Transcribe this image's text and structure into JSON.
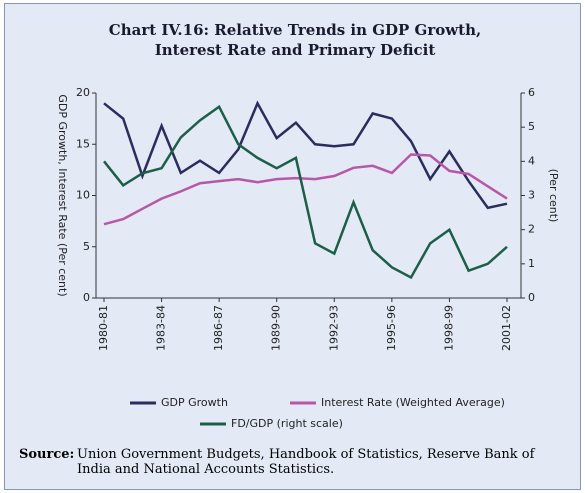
{
  "chart_data": {
    "type": "line",
    "title": "Chart IV.16: Relative Trends in GDP Growth, Interest Rate and Primary Deficit",
    "ylabel": "GDP Growth, Interest Rate (Per cent)",
    "y2label": "(Per cent)",
    "categories": [
      "1980-81",
      null,
      null,
      "1983-84",
      null,
      null,
      "1986-87",
      null,
      null,
      "1989-90",
      null,
      null,
      "1992-93",
      null,
      null,
      "1995-96",
      null,
      null,
      "1998-99",
      null,
      null,
      "2001-02"
    ],
    "ylim": [
      0,
      20
    ],
    "yticks": [
      0,
      5,
      10,
      15,
      20
    ],
    "y2lim": [
      0,
      6
    ],
    "y2ticks": [
      0,
      1,
      2,
      3,
      4,
      5,
      6
    ],
    "series": [
      {
        "name": "GDP Growth",
        "color": "#2b2d5e",
        "values": [
          19.0,
          17.5,
          11.9,
          16.8,
          12.2,
          13.4,
          12.2,
          14.5,
          19.0,
          15.6,
          17.1,
          15.0,
          14.8,
          15.0,
          18.0,
          17.5,
          15.3,
          11.6,
          14.3,
          11.4,
          8.8,
          9.2
        ]
      },
      {
        "name": "Interest Rate (Weighted Average)",
        "color": "#b857a8",
        "values": [
          7.2,
          7.7,
          8.7,
          9.7,
          10.4,
          11.2,
          11.4,
          11.6,
          11.3,
          11.6,
          11.7,
          11.6,
          11.9,
          12.7,
          12.9,
          12.2,
          14.0,
          13.9,
          12.4,
          12.1,
          10.9,
          9.7
        ]
      },
      {
        "name": "FD/GDP (right scale)",
        "color": "#1d5e48",
        "axis": "y2",
        "values": [
          4.0,
          3.3,
          3.65,
          3.8,
          4.7,
          5.2,
          5.6,
          4.5,
          4.1,
          3.8,
          4.1,
          1.6,
          1.3,
          2.8,
          1.4,
          0.9,
          0.6,
          1.6,
          2.0,
          0.8,
          1.0,
          1.5
        ]
      }
    ]
  },
  "source_label": "Source:",
  "source": "Union Government Budgets, Handbook of Statistics, Reserve Bank of India and National Accounts Statistics."
}
